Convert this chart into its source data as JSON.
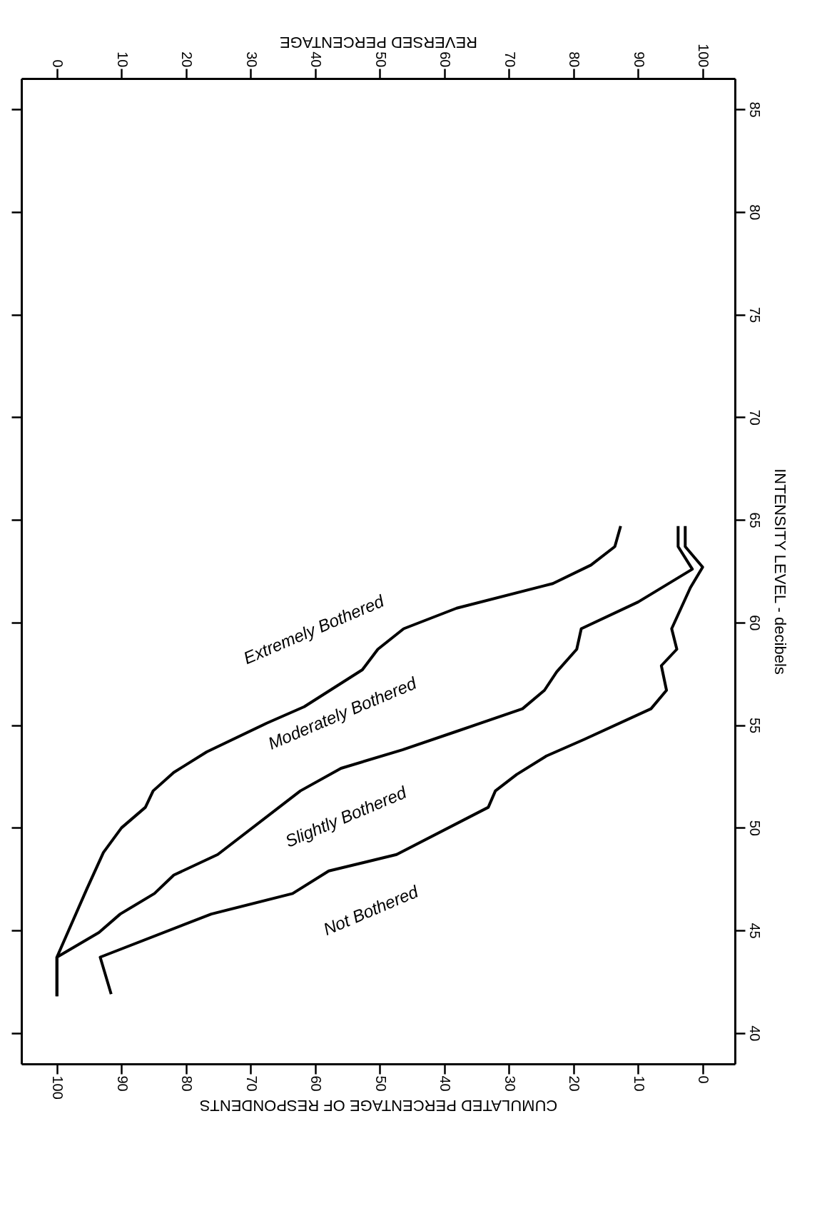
{
  "chart_data": {
    "type": "line",
    "xlabel": "CUMULATED PERCENTAGE OF RESPONDENTS",
    "x2label": "REVERSED PERCENTAGE",
    "ylabel": "INTENSITY LEVEL - decibels",
    "xlim": [
      105.5,
      -5
    ],
    "xticks": [
      100,
      90,
      80,
      70,
      60,
      50,
      40,
      30,
      20,
      10,
      0
    ],
    "x2lim": [
      -5.5,
      105
    ],
    "x2ticks": [
      0,
      10,
      20,
      30,
      40,
      50,
      60,
      70,
      80,
      90,
      100
    ],
    "ylim": [
      38.5,
      86.5
    ],
    "yticks": [
      40,
      45,
      50,
      55,
      60,
      65,
      70,
      75,
      80,
      85
    ],
    "grid": false,
    "legend": false,
    "marker": "none",
    "line_style": "solid",
    "series": [
      {
        "color": "#000000",
        "x": [
          100,
          100,
          95.4,
          92.8,
          90,
          86.3,
          85.1,
          81.9,
          76.8,
          67.5,
          61.7,
          52.7,
          50.3,
          46.3,
          38.1,
          23.2,
          17.3,
          13.6,
          12.7
        ],
        "values": [
          41.8,
          43.7,
          47.0,
          48.8,
          50.0,
          51.0,
          51.8,
          52.7,
          53.7,
          55.1,
          55.9,
          57.7,
          58.7,
          59.7,
          60.7,
          61.9,
          62.8,
          63.7,
          64.7
        ]
      },
      {
        "color": "#000000",
        "x": [
          100,
          100,
          93.5,
          90.2,
          84.9,
          81.9,
          75.1,
          62.3,
          56.0,
          46.5,
          38.1,
          27.9,
          24.5,
          22.6,
          19.5,
          18.8,
          10.0,
          1.6,
          3.8,
          3.8
        ],
        "values": [
          41.8,
          43.7,
          44.9,
          45.8,
          46.8,
          47.7,
          48.7,
          51.8,
          52.9,
          53.8,
          54.7,
          55.8,
          56.7,
          57.6,
          58.7,
          59.7,
          61.0,
          62.6,
          63.7,
          64.7
        ]
      },
      {
        "color": "#000000",
        "x": [
          91.6,
          93.3,
          76.1,
          63.5,
          57.9,
          47.4,
          33.2,
          32.1,
          28.8,
          24.2,
          18.4,
          8.0,
          5.6,
          6.4,
          4.0,
          4.8,
          1.9,
          0,
          2.7,
          2.7
        ],
        "values": [
          41.9,
          43.7,
          45.8,
          46.8,
          47.9,
          48.7,
          51.0,
          51.8,
          52.6,
          53.5,
          54.3,
          55.8,
          56.7,
          57.9,
          58.7,
          59.7,
          61.7,
          62.7,
          63.7,
          64.7
        ]
      }
    ],
    "annotations": [
      "Extremely  Bothered",
      "Moderately  Bothered",
      "Slightly  Bothered",
      "Not  Bothered"
    ]
  }
}
